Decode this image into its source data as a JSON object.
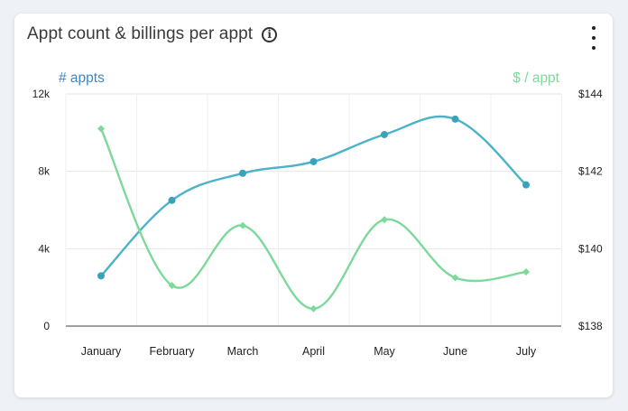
{
  "card": {
    "title": "Appt count & billings per appt",
    "info_icon": "info-icon",
    "menu_icon": "more-vertical-icon"
  },
  "chart_data": {
    "type": "line",
    "categories": [
      "January",
      "February",
      "March",
      "April",
      "May",
      "June",
      "July"
    ],
    "series": [
      {
        "name": "# appts",
        "axis": "left",
        "color": "#4ab3c9",
        "marker": "circle",
        "values": [
          2600,
          6500,
          7900,
          8500,
          9900,
          10700,
          7300
        ]
      },
      {
        "name": "$ / appt",
        "axis": "right",
        "color": "#7dd99a",
        "marker": "diamond",
        "values": [
          143.1,
          139.05,
          140.6,
          138.45,
          140.75,
          139.25,
          139.4
        ]
      }
    ],
    "y_left": {
      "label": "# appts",
      "range": [
        0,
        12000
      ],
      "ticks": [
        0,
        4000,
        8000,
        12000
      ],
      "tick_labels": [
        "0",
        "4k",
        "8k",
        "12k"
      ]
    },
    "y_right": {
      "label": "$ / appt",
      "range": [
        138,
        144
      ],
      "ticks": [
        138,
        140,
        142,
        144
      ],
      "tick_labels": [
        "$138",
        "$140",
        "$142",
        "$144"
      ]
    },
    "grid": true,
    "smooth": true
  }
}
